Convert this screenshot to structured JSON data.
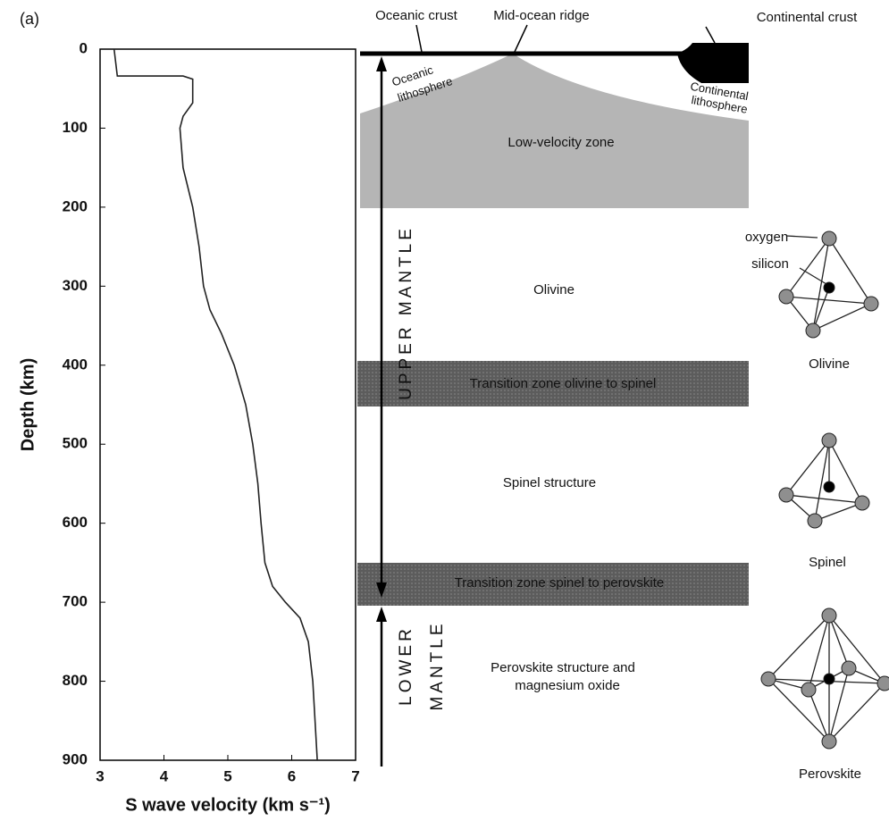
{
  "panel_label": "(a)",
  "chart_data": {
    "type": "line",
    "xlabel": "S wave velocity  (km s⁻¹)",
    "ylabel": "Depth  (km)",
    "x": [
      3.22,
      3.27,
      4.3,
      4.45,
      4.45,
      4.3,
      4.25,
      4.3,
      4.45,
      4.55,
      4.62,
      4.72,
      4.9,
      5.1,
      5.28,
      5.39,
      5.47,
      5.52,
      5.58,
      5.7,
      5.9,
      6.13,
      6.26,
      6.33,
      6.4
    ],
    "values": [
      0,
      34,
      34,
      38,
      68,
      85,
      100,
      150,
      200,
      250,
      300,
      330,
      360,
      400,
      450,
      500,
      550,
      600,
      650,
      680,
      700,
      720,
      750,
      800,
      900
    ],
    "color": "#222222",
    "xlim": [
      3,
      7
    ],
    "xticks": [
      3,
      4,
      5,
      6,
      7
    ],
    "ylim": [
      0,
      900
    ],
    "yticks": [
      0,
      100,
      200,
      300,
      400,
      500,
      600,
      700,
      800,
      900
    ],
    "y_inverted": true,
    "grid": false
  },
  "diagram": {
    "oceanic_crust": "Oceanic crust",
    "mid_ocean_ridge": "Mid-ocean ridge",
    "continental_crust": "Continental crust",
    "oceanic_lithosphere": [
      "Oceanic",
      "lithosphere"
    ],
    "continental_lithosphere": [
      "Continental",
      "lithosphere"
    ],
    "low_velocity_zone": "Low-velocity zone",
    "olivine_zone": "Olivine",
    "transition_1": "Transition zone olivine to spinel",
    "spinel_zone": "Spinel structure",
    "transition_2": "Transition zone spinel to perovskite",
    "perovskite_zone": [
      "Perovskite structure and",
      "magnesium oxide"
    ],
    "upper_mantle": "UPPER MANTLE",
    "lower_mantle": [
      "LOWER",
      "MANTLE"
    ],
    "oxygen": "oxygen",
    "silicon": "silicon",
    "crystals": [
      "Olivine",
      "Spinel",
      "Perovskite"
    ]
  }
}
